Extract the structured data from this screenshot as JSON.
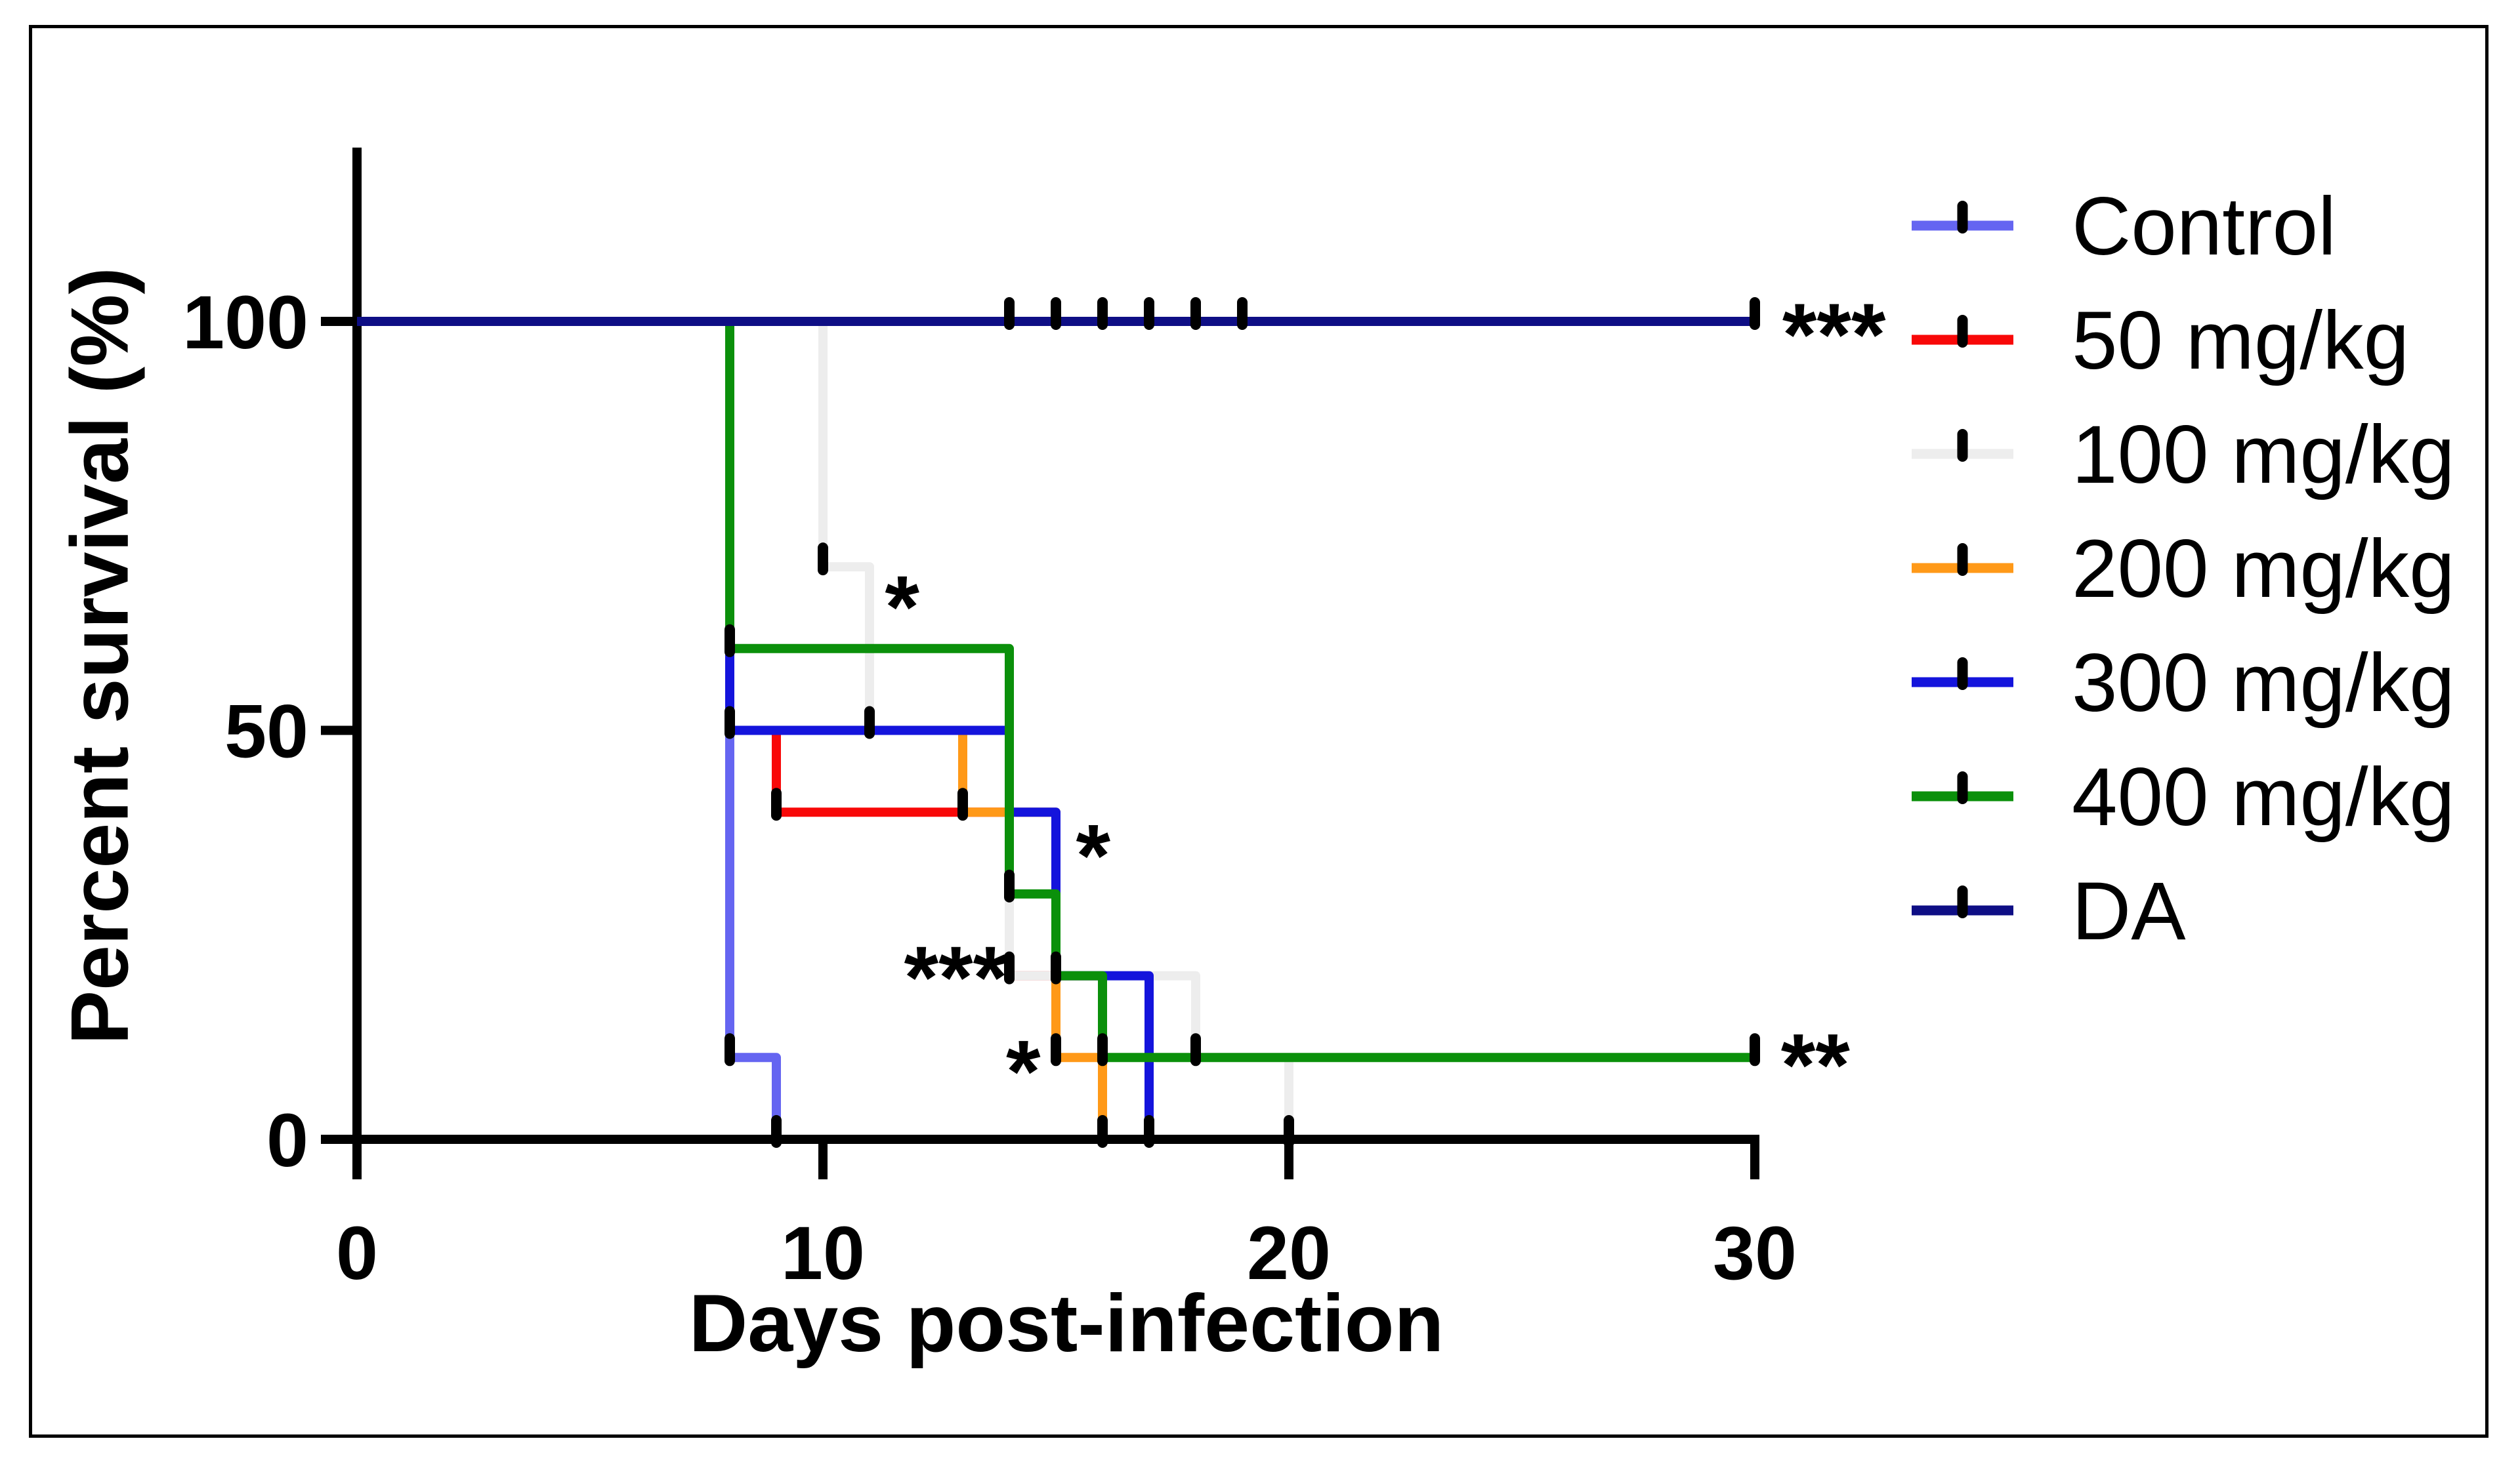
{
  "figure": {
    "border_color": "#000000",
    "background_color": "#ffffff",
    "axis_color": "#000000",
    "censor_tick_color": "#000000"
  },
  "chart_data": {
    "type": "line",
    "subtype": "kaplan-meier-survival-step",
    "title": "",
    "xlabel": "Days post-infection",
    "ylabel": "Percent survival (%)",
    "xlim": [
      0,
      30
    ],
    "ylim": [
      0,
      100
    ],
    "x_ticks": [
      0,
      10,
      20,
      30
    ],
    "y_ticks": [
      0,
      50,
      100
    ],
    "grid": false,
    "legend_position": "right",
    "series": [
      {
        "name": "Control",
        "color": "#6565f1",
        "points": [
          [
            0,
            100
          ],
          [
            8,
            100
          ],
          [
            8,
            10
          ],
          [
            9,
            10
          ],
          [
            9,
            0
          ]
        ],
        "censor_ticks": [
          [
            8,
            10
          ],
          [
            9,
            0
          ]
        ]
      },
      {
        "name": "50 mg/kg",
        "color": "#f80808",
        "points": [
          [
            0,
            100
          ],
          [
            8,
            100
          ],
          [
            8,
            50
          ],
          [
            9,
            50
          ],
          [
            9,
            40
          ],
          [
            14,
            40
          ],
          [
            14,
            20
          ],
          [
            16,
            20
          ],
          [
            16,
            0
          ]
        ],
        "censor_ticks": [
          [
            9,
            40
          ],
          [
            14,
            20
          ]
        ]
      },
      {
        "name": "100 mg/kg",
        "color": "#ededed",
        "points": [
          [
            0,
            100
          ],
          [
            10,
            100
          ],
          [
            10,
            70
          ],
          [
            11,
            70
          ],
          [
            11,
            50
          ],
          [
            14,
            50
          ],
          [
            14,
            20
          ],
          [
            18,
            20
          ],
          [
            18,
            10
          ],
          [
            20,
            10
          ],
          [
            20,
            0
          ]
        ],
        "censor_ticks": [
          [
            10,
            70
          ],
          [
            11,
            50
          ],
          [
            18,
            10
          ],
          [
            20,
            0
          ]
        ]
      },
      {
        "name": "200 mg/kg",
        "color": "#ff9918",
        "points": [
          [
            0,
            100
          ],
          [
            8,
            100
          ],
          [
            8,
            50
          ],
          [
            13,
            50
          ],
          [
            13,
            40
          ],
          [
            15,
            40
          ],
          [
            15,
            10
          ],
          [
            16,
            10
          ],
          [
            16,
            0
          ]
        ],
        "censor_ticks": [
          [
            13,
            40
          ],
          [
            15,
            10
          ],
          [
            16,
            0
          ]
        ]
      },
      {
        "name": "300 mg/kg",
        "color": "#1414dc",
        "points": [
          [
            0,
            100
          ],
          [
            8,
            100
          ],
          [
            8,
            50
          ],
          [
            14,
            50
          ],
          [
            14,
            40
          ],
          [
            15,
            40
          ],
          [
            15,
            20
          ],
          [
            17,
            20
          ],
          [
            17,
            0
          ]
        ],
        "censor_ticks": [
          [
            8,
            50
          ],
          [
            17,
            0
          ]
        ]
      },
      {
        "name": "400 mg/kg",
        "color": "#0b900b",
        "points": [
          [
            0,
            100
          ],
          [
            8,
            100
          ],
          [
            8,
            60
          ],
          [
            14,
            60
          ],
          [
            14,
            30
          ],
          [
            15,
            30
          ],
          [
            15,
            20
          ],
          [
            16,
            20
          ],
          [
            16,
            10
          ],
          [
            30,
            10
          ]
        ],
        "censor_ticks": [
          [
            8,
            60
          ],
          [
            14,
            30
          ],
          [
            15,
            20
          ],
          [
            16,
            10
          ],
          [
            30,
            10
          ]
        ]
      },
      {
        "name": "DA",
        "color": "#0e0e85",
        "points": [
          [
            0,
            100
          ],
          [
            30,
            100
          ]
        ],
        "censor_ticks": [
          [
            14,
            100
          ],
          [
            15,
            100
          ],
          [
            16,
            100
          ],
          [
            17,
            100
          ],
          [
            18,
            100
          ],
          [
            19,
            100
          ],
          [
            30,
            100
          ]
        ]
      }
    ],
    "annotations": [
      {
        "text": "*",
        "x": 11.7,
        "y": 66.9
      },
      {
        "text": "***",
        "x": 12.85,
        "y": 21.6
      },
      {
        "text": "*",
        "x": 14.3,
        "y": 10.1
      },
      {
        "text": "*",
        "x": 15.8,
        "y": 36.5
      },
      {
        "text": "***",
        "x": 31.7,
        "y": 100.2
      },
      {
        "text": "**",
        "x": 31.3,
        "y": 10.9
      }
    ]
  }
}
